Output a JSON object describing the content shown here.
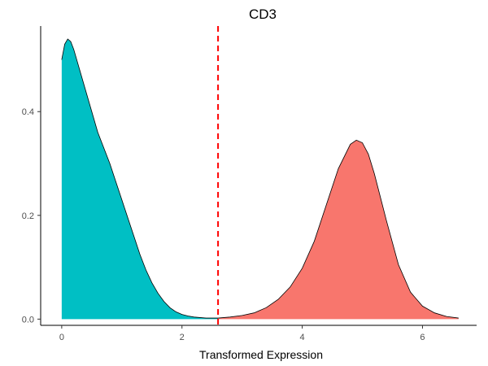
{
  "chart_data": {
    "type": "area",
    "title": "CD3",
    "xlabel": "Transformed Expression",
    "ylabel": "",
    "xlim": [
      -0.35,
      6.9
    ],
    "ylim": [
      -0.012,
      0.565
    ],
    "x_ticks": [
      0,
      2,
      4,
      6
    ],
    "y_ticks": [
      0.0,
      0.2,
      0.4
    ],
    "x_tick_labels": [
      "0",
      "2",
      "4",
      "6"
    ],
    "y_tick_labels": [
      "0.0",
      "0.2",
      "0.4"
    ],
    "grid": false,
    "legend": "none",
    "threshold": {
      "x": 2.6,
      "style": "dashed",
      "color": "#ff0000"
    },
    "series": [
      {
        "color": "#00bfc4",
        "x": [
          0.0,
          0.05,
          0.1,
          0.15,
          0.2,
          0.3,
          0.4,
          0.5,
          0.6,
          0.7,
          0.8,
          0.9,
          1.0,
          1.1,
          1.2,
          1.3,
          1.4,
          1.5,
          1.6,
          1.7,
          1.8,
          1.9,
          2.0,
          2.1,
          2.2,
          2.3,
          2.4,
          2.5,
          2.6
        ],
        "y": [
          0.5,
          0.53,
          0.54,
          0.535,
          0.52,
          0.48,
          0.44,
          0.4,
          0.36,
          0.33,
          0.3,
          0.265,
          0.23,
          0.195,
          0.16,
          0.125,
          0.095,
          0.07,
          0.05,
          0.034,
          0.022,
          0.014,
          0.009,
          0.006,
          0.004,
          0.003,
          0.002,
          0.002,
          0.002
        ]
      },
      {
        "color": "#f8766d",
        "x": [
          2.6,
          2.8,
          3.0,
          3.2,
          3.4,
          3.6,
          3.8,
          4.0,
          4.2,
          4.4,
          4.6,
          4.8,
          4.9,
          5.0,
          5.1,
          5.2,
          5.4,
          5.6,
          5.8,
          6.0,
          6.2,
          6.4,
          6.6
        ],
        "y": [
          0.002,
          0.004,
          0.007,
          0.012,
          0.022,
          0.038,
          0.062,
          0.098,
          0.15,
          0.22,
          0.29,
          0.337,
          0.345,
          0.34,
          0.318,
          0.28,
          0.19,
          0.105,
          0.052,
          0.025,
          0.012,
          0.005,
          0.002
        ]
      }
    ]
  }
}
